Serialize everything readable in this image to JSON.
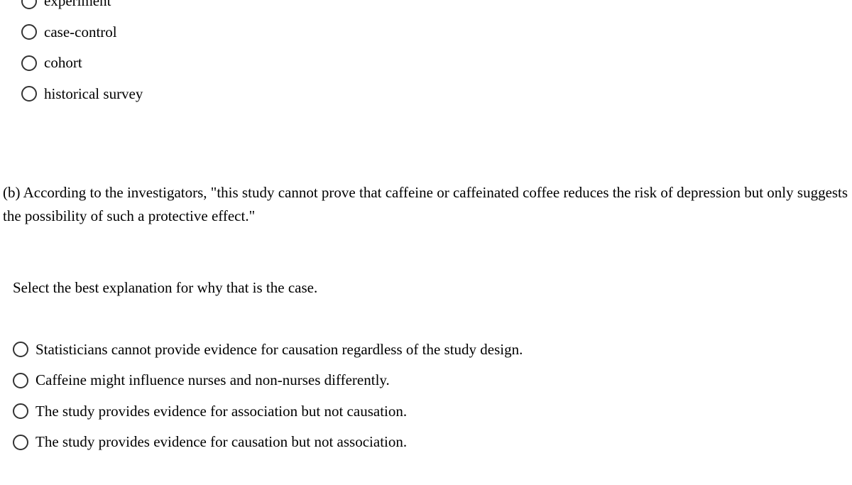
{
  "group_a": {
    "options": [
      {
        "label": "experiment"
      },
      {
        "label": "case-control"
      },
      {
        "label": "cohort"
      },
      {
        "label": "historical survey"
      }
    ]
  },
  "question_b": {
    "text": "(b) According to the investigators, \"this study cannot prove that caffeine or caffeinated coffee reduces the risk of depression but only suggests the possibility of such a protective effect.\""
  },
  "prompt_b": {
    "text": "Select the best explanation for why that is the case."
  },
  "group_b": {
    "options": [
      {
        "label": "Statisticians cannot provide evidence for causation regardless of the study design."
      },
      {
        "label": "Caffeine might influence nurses and non-nurses differently."
      },
      {
        "label": "The study provides evidence for association but not causation."
      },
      {
        "label": "The study provides evidence for causation but not association."
      }
    ]
  }
}
